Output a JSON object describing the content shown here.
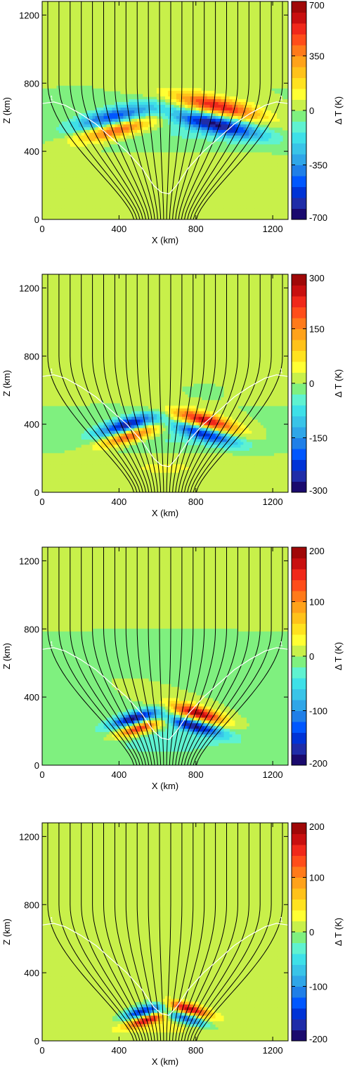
{
  "chart_data": [
    {
      "type": "heatmap",
      "xlabel": "X (km)",
      "ylabel": "Z (km)",
      "colorbar_label": "Δ T (K)",
      "xlim": [
        0,
        1280
      ],
      "ylim": [
        0,
        1280
      ],
      "x_ticks": [
        "0",
        "400",
        "800",
        "1200"
      ],
      "y_ticks": [
        "0",
        "400",
        "800",
        "1200"
      ],
      "colorbar_range": [
        -700,
        700
      ],
      "colorbar_ticks": [
        "700",
        "350",
        "0",
        "-350",
        "-700"
      ],
      "blobs": [
        {
          "x": 370,
          "z": 600,
          "rx": 200,
          "rz": 55,
          "dt": -480,
          "tilt": 0.25
        },
        {
          "x": 380,
          "z": 525,
          "rx": 200,
          "rz": 50,
          "dt": 500,
          "tilt": 0.25
        },
        {
          "x": 910,
          "z": 665,
          "rx": 230,
          "rz": 55,
          "dt": 560,
          "tilt": -0.25
        },
        {
          "x": 900,
          "z": 560,
          "rx": 230,
          "rz": 55,
          "dt": -620,
          "tilt": -0.25
        },
        {
          "x": 640,
          "z": 300,
          "rx": 560,
          "rz": 180,
          "dt": 60,
          "tilt": 0
        },
        {
          "x": 640,
          "z": 480,
          "rx": 520,
          "rz": 110,
          "dt": -90,
          "tilt": 0
        }
      ]
    },
    {
      "type": "heatmap",
      "xlabel": "X (km)",
      "ylabel": "Z (km)",
      "colorbar_label": "Δ T (K)",
      "xlim": [
        0,
        1280
      ],
      "ylim": [
        0,
        1280
      ],
      "x_ticks": [
        "0",
        "400",
        "800",
        "1200"
      ],
      "y_ticks": [
        "0",
        "400",
        "800",
        "1200"
      ],
      "colorbar_range": [
        -300,
        300
      ],
      "colorbar_ticks": [
        "300",
        "150",
        "0",
        "-150",
        "-300"
      ],
      "blobs": [
        {
          "x": 440,
          "z": 395,
          "rx": 150,
          "rz": 45,
          "dt": -260,
          "tilt": 0.3
        },
        {
          "x": 450,
          "z": 330,
          "rx": 150,
          "rz": 40,
          "dt": 230,
          "tilt": 0.3
        },
        {
          "x": 850,
          "z": 420,
          "rx": 170,
          "rz": 45,
          "dt": 260,
          "tilt": -0.3
        },
        {
          "x": 840,
          "z": 345,
          "rx": 170,
          "rz": 42,
          "dt": -220,
          "tilt": -0.3
        },
        {
          "x": 640,
          "z": 180,
          "rx": 500,
          "rz": 130,
          "dt": 40,
          "tilt": 0
        },
        {
          "x": 640,
          "z": 280,
          "rx": 480,
          "rz": 90,
          "dt": -50,
          "tilt": 0
        }
      ]
    },
    {
      "type": "heatmap",
      "xlabel": "X (km)",
      "ylabel": "Z (km)",
      "colorbar_label": "Δ T (K)",
      "xlim": [
        0,
        1280
      ],
      "ylim": [
        0,
        1280
      ],
      "x_ticks": [
        "0",
        "400",
        "800",
        "1200"
      ],
      "y_ticks": [
        "0",
        "400",
        "800",
        "1200"
      ],
      "colorbar_range": [
        -200,
        200
      ],
      "colorbar_ticks": [
        "200",
        "100",
        "0",
        "-100",
        "-200"
      ],
      "blobs": [
        {
          "x": 480,
          "z": 275,
          "rx": 120,
          "rz": 38,
          "dt": -180,
          "tilt": 0.3
        },
        {
          "x": 500,
          "z": 215,
          "rx": 120,
          "rz": 35,
          "dt": 170,
          "tilt": 0.3
        },
        {
          "x": 810,
          "z": 305,
          "rx": 140,
          "rz": 40,
          "dt": 190,
          "tilt": -0.3
        },
        {
          "x": 790,
          "z": 230,
          "rx": 140,
          "rz": 35,
          "dt": -170,
          "tilt": -0.3
        },
        {
          "x": 640,
          "z": 150,
          "rx": 420,
          "rz": 110,
          "dt": -30,
          "tilt": 0
        }
      ]
    },
    {
      "type": "heatmap",
      "xlabel": "X (km)",
      "ylabel": "Z (km)",
      "colorbar_label": "Δ T (K)",
      "xlim": [
        0,
        1280
      ],
      "ylim": [
        0,
        1280
      ],
      "x_ticks": [
        "0",
        "400",
        "800",
        "1200"
      ],
      "y_ticks": [
        "0",
        "400",
        "800",
        "1200"
      ],
      "colorbar_range": [
        -200,
        200
      ],
      "colorbar_ticks": [
        "200",
        "100",
        "0",
        "-100",
        "-200"
      ],
      "blobs": [
        {
          "x": 520,
          "z": 170,
          "rx": 100,
          "rz": 32,
          "dt": -170,
          "tilt": 0.3
        },
        {
          "x": 540,
          "z": 120,
          "rx": 100,
          "rz": 30,
          "dt": 150,
          "tilt": 0.3
        },
        {
          "x": 760,
          "z": 190,
          "rx": 110,
          "rz": 32,
          "dt": 170,
          "tilt": -0.3
        },
        {
          "x": 750,
          "z": 130,
          "rx": 110,
          "rz": 30,
          "dt": -140,
          "tilt": -0.3
        },
        {
          "x": 640,
          "z": 90,
          "rx": 380,
          "rz": 90,
          "dt": 25,
          "tilt": 0
        }
      ]
    }
  ],
  "contour_label": "1",
  "colormap": [
    "#1a0a6e",
    "#1f2ca8",
    "#0033d6",
    "#0057ff",
    "#1f7fe8",
    "#2fa6e8",
    "#39c4e8",
    "#3ee0e8",
    "#5ff2d0",
    "#7ff07f",
    "#c8f04a",
    "#ffff33",
    "#ffe21f",
    "#ffc21a",
    "#ffa21a",
    "#ff7a1a",
    "#ff4d1a",
    "#f0281a",
    "#c80f0f",
    "#a00808"
  ],
  "colors": {
    "background_field": "#7ff07f",
    "field_lines": "#000000",
    "tau_contour": "#ffffff"
  }
}
